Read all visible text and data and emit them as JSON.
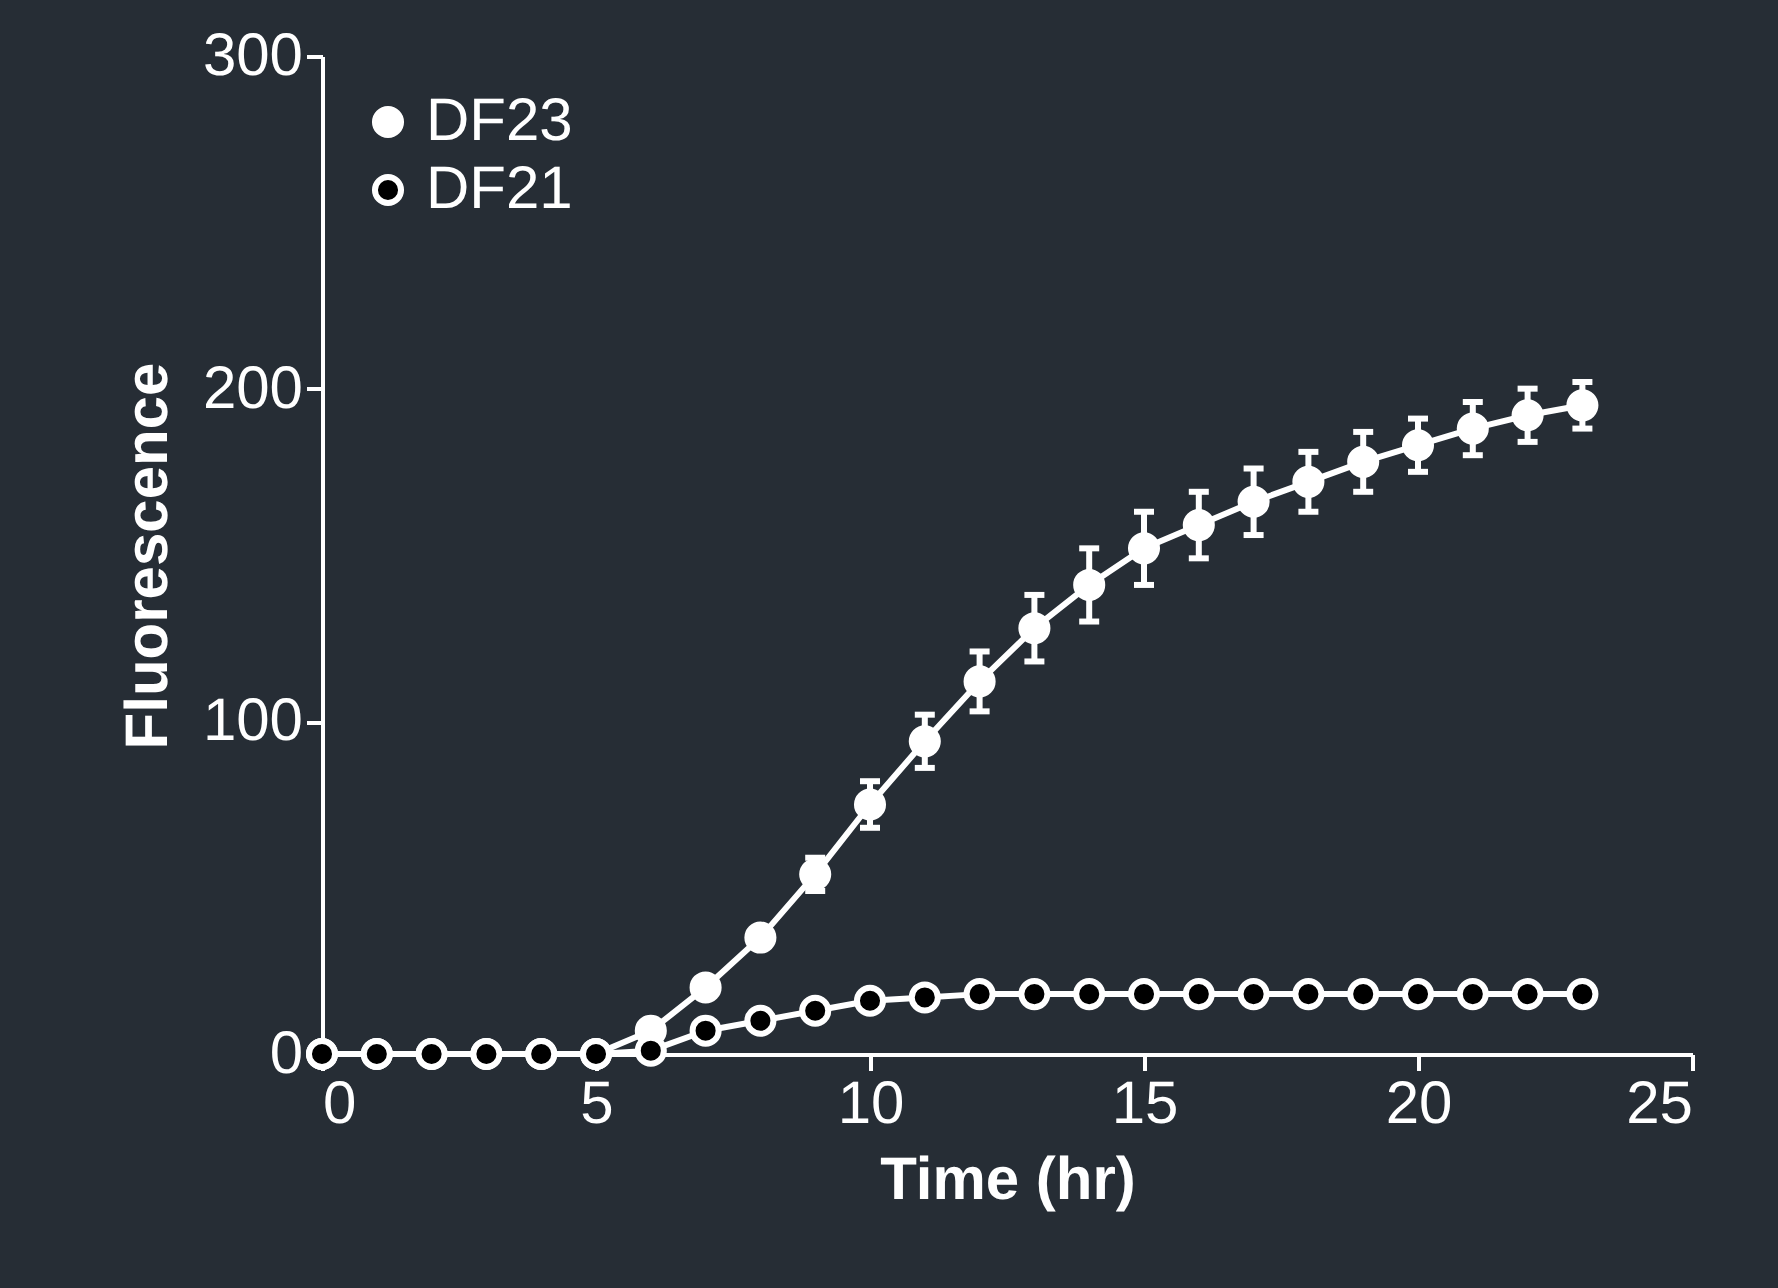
{
  "chart_data": {
    "type": "line",
    "xlabel": "Time (hr)",
    "ylabel": "Fluorescence",
    "x": [
      0,
      1,
      2,
      3,
      4,
      5,
      6,
      7,
      8,
      9,
      10,
      11,
      12,
      13,
      14,
      15,
      16,
      17,
      18,
      19,
      20,
      21,
      22,
      23
    ],
    "series": [
      {
        "name": "DF23",
        "color": "#ffffff",
        "values": [
          0,
          0,
          0,
          0,
          0,
          0,
          7,
          20,
          35,
          54,
          75,
          94,
          112,
          128,
          141,
          152,
          159,
          166,
          172,
          178,
          183,
          188,
          192,
          195
        ],
        "errors": [
          null,
          null,
          null,
          null,
          null,
          null,
          null,
          null,
          null,
          5,
          7,
          8,
          9,
          10,
          11,
          11,
          10,
          10,
          9,
          9,
          8,
          8,
          8,
          7
        ]
      },
      {
        "name": "DF21",
        "color": "#ffffff",
        "values": [
          0,
          0,
          0,
          0,
          0,
          0,
          1,
          7,
          10,
          13,
          16,
          17,
          18,
          18,
          18,
          18,
          18,
          18,
          18,
          18,
          18,
          18,
          18,
          18
        ]
      }
    ],
    "xlim": [
      0,
      25
    ],
    "ylim": [
      0,
      300
    ],
    "xticks": [
      0,
      5,
      10,
      15,
      20,
      25
    ],
    "yticks": [
      0,
      100,
      200,
      300
    ],
    "grid": false,
    "legend": "top left",
    "marker": "circle",
    "line_style": "solid"
  }
}
